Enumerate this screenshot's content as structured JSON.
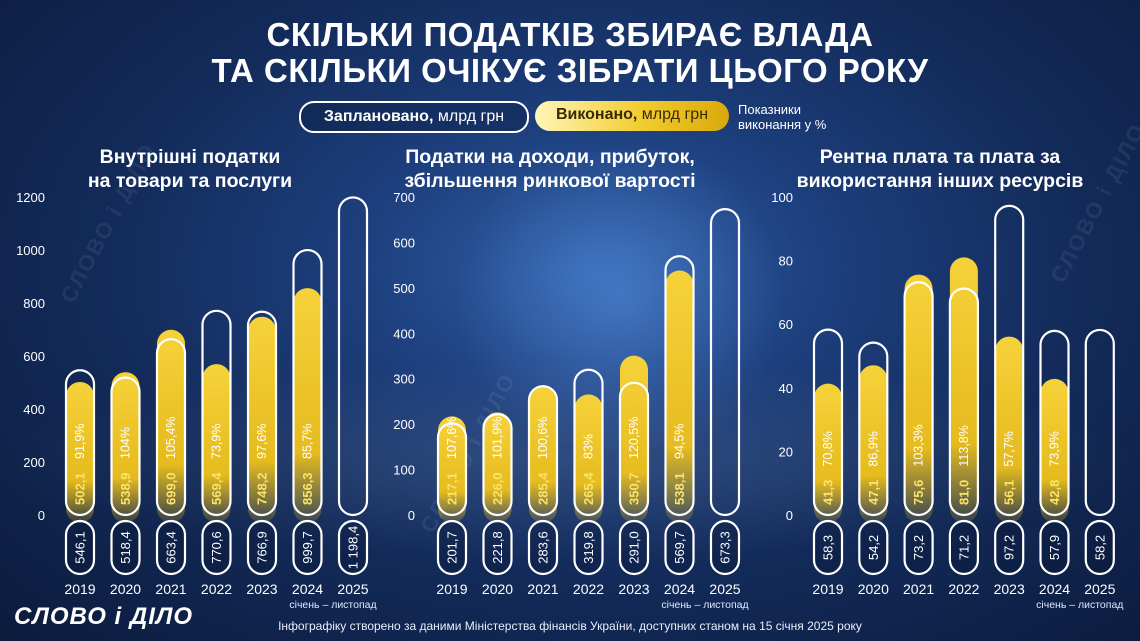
{
  "title_line1": "СКІЛЬКИ ПОДАТКІВ ЗБИРАЄ ВЛАДА",
  "title_line2": "ТА СКІЛЬКИ ОЧІКУЄ ЗІБРАТИ ЦЬОГО РОКУ",
  "legend": {
    "planned_bold": "Заплановано,",
    "planned_unit": " млрд грн",
    "actual_bold": "Виконано,",
    "actual_unit": " млрд грн",
    "note_line1": "Показники",
    "note_line2": "виконання у %"
  },
  "period_note": "січень – листопад",
  "footer": "Інфографіку створено за даними Міністерства фінансів України, доступних станом на 15 січня 2025 року",
  "logo": "СЛОВО і ДІЛО",
  "watermark": "СЛОВО і ДІЛО",
  "colors": {
    "gold": "#f0c21a",
    "gold_light": "#fff2a0",
    "outline": "#ffffff",
    "background": "#15305f"
  },
  "chart_data": [
    {
      "type": "bar",
      "title_line1": "Внутрішні податки",
      "title_line2": "на товари та послуги",
      "categories": [
        "2019",
        "2020",
        "2021",
        "2022",
        "2023",
        "2024",
        "2025"
      ],
      "ylim": [
        0,
        1200
      ],
      "yticks": [
        0,
        200,
        400,
        600,
        800,
        1000,
        1200
      ],
      "series": [
        {
          "name": "Заплановано, млрд грн",
          "values": [
            546.1,
            518.4,
            663.4,
            770.6,
            766.9,
            999.7,
            1198.4
          ],
          "labels": [
            "546,1",
            "518,4",
            "663,4",
            "770,6",
            "766,9",
            "999,7",
            "1 198,4"
          ]
        },
        {
          "name": "Виконано, млрд грн",
          "values": [
            502.1,
            538.9,
            699.0,
            569.4,
            748.2,
            856.3,
            null
          ],
          "labels": [
            "502,1",
            "538,9",
            "699,0",
            "569,4",
            "748,2",
            "856,3",
            ""
          ]
        }
      ],
      "percent": [
        "91,9%",
        "104%",
        "105,4%",
        "73,9%",
        "97,6%",
        "85,7%",
        ""
      ]
    },
    {
      "type": "bar",
      "title_line1": "Податки на доходи, прибуток,",
      "title_line2": "збільшення ринкової вартості",
      "categories": [
        "2019",
        "2020",
        "2021",
        "2022",
        "2023",
        "2024",
        "2025"
      ],
      "ylim": [
        0,
        700
      ],
      "yticks": [
        0,
        100,
        200,
        300,
        400,
        500,
        600,
        700
      ],
      "series": [
        {
          "name": "Заплановано, млрд грн",
          "values": [
            201.7,
            221.8,
            283.6,
            319.8,
            291.0,
            569.7,
            673.3
          ],
          "labels": [
            "201,7",
            "221,8",
            "283,6",
            "319,8",
            "291,0",
            "569,7",
            "673,3"
          ]
        },
        {
          "name": "Виконано, млрд грн",
          "values": [
            217.1,
            226.0,
            285.4,
            265.4,
            350.7,
            538.1,
            null
          ],
          "labels": [
            "217,1",
            "226,0",
            "285,4",
            "265,4",
            "350,7",
            "538,1",
            ""
          ]
        }
      ],
      "percent": [
        "107,6%",
        "101,9%",
        "100,6%",
        "83%",
        "120,5%",
        "94,5%",
        ""
      ]
    },
    {
      "type": "bar",
      "title_line1": "Рентна плата та плата за",
      "title_line2": "використання інших ресурсів",
      "categories": [
        "2019",
        "2020",
        "2021",
        "2022",
        "2023",
        "2024",
        "2025"
      ],
      "ylim": [
        0,
        100
      ],
      "yticks": [
        0,
        20,
        40,
        60,
        80,
        100
      ],
      "series": [
        {
          "name": "Заплановано, млрд грн",
          "values": [
            58.3,
            54.2,
            73.2,
            71.2,
            97.2,
            57.9,
            58.2
          ],
          "labels": [
            "58,3",
            "54,2",
            "73,2",
            "71,2",
            "97,2",
            "57,9",
            "58,2"
          ]
        },
        {
          "name": "Виконано, млрд грн",
          "values": [
            41.3,
            47.1,
            75.6,
            81.0,
            56.1,
            42.8,
            null
          ],
          "labels": [
            "41,3",
            "47,1",
            "75,6",
            "81,0",
            "56,1",
            "42,8",
            ""
          ]
        }
      ],
      "percent": [
        "70,8%",
        "86,9%",
        "103,3%",
        "113,8%",
        "57,7%",
        "73,9%",
        ""
      ]
    }
  ]
}
